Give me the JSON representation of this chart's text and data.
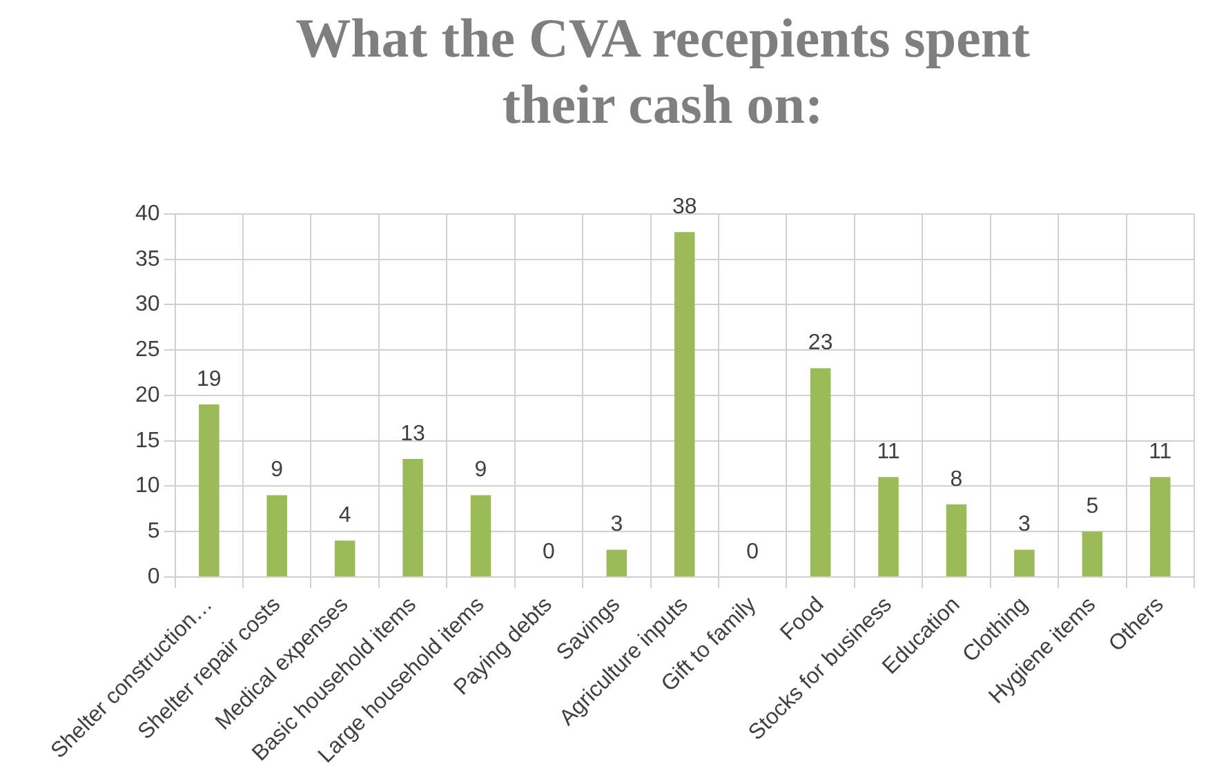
{
  "chart_data": {
    "type": "bar",
    "title": "What the CVA recepients spent their cash on:",
    "categories": [
      "Shelter construction…",
      "Shelter repair costs",
      "Medical expenses",
      "Basic household items",
      "Large household items",
      "Paying debts",
      "Savings",
      "Agriculture inputs",
      "Gift to family",
      "Food",
      "Stocks for business",
      "Education",
      "Clothing",
      "Hygiene items",
      "Others"
    ],
    "values": [
      19,
      9,
      4,
      13,
      9,
      0,
      3,
      38,
      0,
      23,
      11,
      8,
      3,
      5,
      11
    ],
    "color": "#9bbb59",
    "ylim": [
      0,
      40
    ],
    "yticks": [
      0,
      5,
      10,
      15,
      20,
      25,
      30,
      35,
      40
    ],
    "grid": true,
    "data_labels": true
  }
}
